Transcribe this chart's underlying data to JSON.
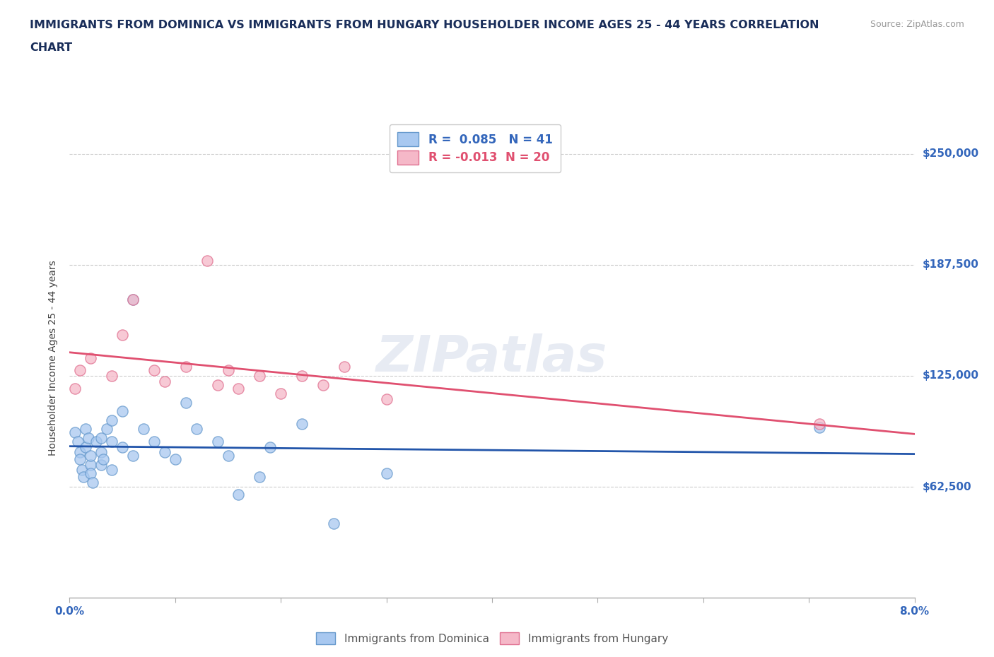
{
  "title_line1": "IMMIGRANTS FROM DOMINICA VS IMMIGRANTS FROM HUNGARY HOUSEHOLDER INCOME AGES 25 - 44 YEARS CORRELATION",
  "title_line2": "CHART",
  "source_text": "Source: ZipAtlas.com",
  "ylabel": "Householder Income Ages 25 - 44 years",
  "xlim": [
    0.0,
    0.08
  ],
  "ylim": [
    0,
    270000
  ],
  "xticks": [
    0.0,
    0.01,
    0.02,
    0.03,
    0.04,
    0.05,
    0.06,
    0.07,
    0.08
  ],
  "xticklabels": [
    "0.0%",
    "",
    "",
    "",
    "",
    "",
    "",
    "",
    "8.0%"
  ],
  "yticks": [
    0,
    62500,
    125000,
    187500,
    250000
  ],
  "yticklabels": [
    "",
    "$62,500",
    "$125,000",
    "$187,500",
    "$250,000"
  ],
  "hlines": [
    250000,
    187500,
    125000,
    62500
  ],
  "dominica_color": "#A8C8F0",
  "hungary_color": "#F5B8C8",
  "dominica_edge_color": "#6699CC",
  "hungary_edge_color": "#E07090",
  "dominica_line_color": "#2255AA",
  "hungary_line_color": "#E05070",
  "dominica_R": 0.085,
  "dominica_N": 41,
  "hungary_R": -0.013,
  "hungary_N": 20,
  "watermark": "ZIPatlas",
  "dominica_x": [
    0.0005,
    0.0008,
    0.001,
    0.001,
    0.0012,
    0.0013,
    0.0015,
    0.0015,
    0.0018,
    0.002,
    0.002,
    0.002,
    0.0022,
    0.0025,
    0.003,
    0.003,
    0.003,
    0.0032,
    0.0035,
    0.004,
    0.004,
    0.004,
    0.005,
    0.005,
    0.006,
    0.006,
    0.007,
    0.008,
    0.009,
    0.01,
    0.011,
    0.012,
    0.014,
    0.015,
    0.016,
    0.018,
    0.019,
    0.022,
    0.025,
    0.03,
    0.071
  ],
  "dominica_y": [
    93000,
    88000,
    82000,
    78000,
    72000,
    68000,
    95000,
    85000,
    90000,
    75000,
    80000,
    70000,
    65000,
    88000,
    90000,
    82000,
    75000,
    78000,
    95000,
    100000,
    88000,
    72000,
    85000,
    105000,
    168000,
    80000,
    95000,
    88000,
    82000,
    78000,
    110000,
    95000,
    88000,
    80000,
    58000,
    68000,
    85000,
    98000,
    42000,
    70000,
    96000
  ],
  "hungary_x": [
    0.0005,
    0.001,
    0.002,
    0.004,
    0.005,
    0.006,
    0.008,
    0.009,
    0.011,
    0.013,
    0.014,
    0.015,
    0.016,
    0.018,
    0.02,
    0.022,
    0.024,
    0.026,
    0.03,
    0.071
  ],
  "hungary_y": [
    118000,
    128000,
    135000,
    125000,
    148000,
    168000,
    128000,
    122000,
    130000,
    190000,
    120000,
    128000,
    118000,
    125000,
    115000,
    125000,
    120000,
    130000,
    112000,
    98000
  ],
  "dot_size": 120
}
